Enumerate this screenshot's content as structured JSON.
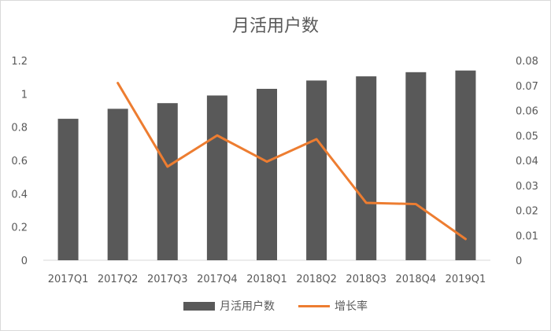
{
  "chart_data": {
    "type": "bar",
    "title": "月活用户数",
    "categories": [
      "2017Q1",
      "2017Q2",
      "2017Q3",
      "2017Q4",
      "2018Q1",
      "2018Q2",
      "2018Q3",
      "2018Q4",
      "2019Q1"
    ],
    "series": [
      {
        "name": "月活用户数",
        "type": "bar",
        "axis": "left",
        "color": "#595959",
        "values": [
          0.85,
          0.91,
          0.944,
          0.99,
          1.03,
          1.08,
          1.105,
          1.13,
          1.14
        ]
      },
      {
        "name": "增长率",
        "type": "line",
        "axis": "right",
        "color": "#ed7d31",
        "values": [
          null,
          0.071,
          0.0375,
          0.05,
          0.0395,
          0.0485,
          0.023,
          0.0225,
          0.0085
        ]
      }
    ],
    "y_left": {
      "min": 0,
      "max": 1.2,
      "ticks": [
        "0",
        "0.2",
        "0.4",
        "0.6",
        "0.8",
        "1",
        "1.2"
      ]
    },
    "y_right": {
      "min": 0,
      "max": 0.08,
      "ticks": [
        "0",
        "0.01",
        "0.02",
        "0.03",
        "0.04",
        "0.05",
        "0.06",
        "0.07",
        "0.08"
      ]
    },
    "grid": false,
    "legend_position": "bottom"
  }
}
